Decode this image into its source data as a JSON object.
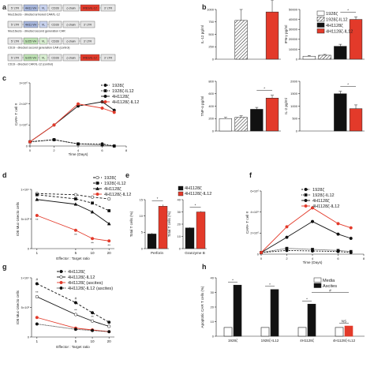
{
  "panel_letters": [
    "a",
    "b",
    "c",
    "d",
    "e",
    "f",
    "g",
    "h"
  ],
  "constructs": [
    {
      "label": "Muc16ecto - directed armored CAR/IL-12",
      "segments": [
        {
          "text": "5' LTR",
          "color": "#e6e6e6"
        },
        {
          "text": "4H11 VH",
          "color": "#a9b8de"
        },
        {
          "text": "VL",
          "color": "#c9d3ef"
        },
        {
          "text": "CD28",
          "color": "#e6e6e6"
        },
        {
          "text": "ζ-chain",
          "color": "#e6e6e6"
        },
        {
          "text": "IRES/IL-12",
          "color": "#e33a2a"
        },
        {
          "text": "3' LTR",
          "color": "#e6e6e6"
        }
      ]
    },
    {
      "label": "Muc16ecto - directed second generation CAR",
      "segments": [
        {
          "text": "5' LTR",
          "color": "#e6e6e6"
        },
        {
          "text": "4H11 VH",
          "color": "#a9b8de"
        },
        {
          "text": "VL",
          "color": "#c9d3ef"
        },
        {
          "text": "CD28",
          "color": "#e6e6e6"
        },
        {
          "text": "ζ-chain",
          "color": "#e6e6e6"
        },
        {
          "text": "3' LTR",
          "color": "#e6e6e6"
        }
      ]
    },
    {
      "label": "CD19 - directed second generation CAR (control)",
      "segments": [
        {
          "text": "5' LTR",
          "color": "#e6e6e6"
        },
        {
          "text": "SJ25 VH",
          "color": "#bfe3b5"
        },
        {
          "text": "VL",
          "color": "#d9efd2"
        },
        {
          "text": "CD28",
          "color": "#e6e6e6"
        },
        {
          "text": "ζ-chain",
          "color": "#e6e6e6"
        },
        {
          "text": "3' LTR",
          "color": "#e6e6e6"
        }
      ]
    },
    {
      "label": "CD19 - directed CAR/IL-12 (control)",
      "segments": [
        {
          "text": "5' LTR",
          "color": "#e6e6e6"
        },
        {
          "text": "SJ25 VH",
          "color": "#bfe3b5"
        },
        {
          "text": "VL",
          "color": "#d9efd2"
        },
        {
          "text": "CD28",
          "color": "#e6e6e6"
        },
        {
          "text": "ζ-chain",
          "color": "#e6e6e6"
        },
        {
          "text": "IRES/IL-12",
          "color": "#e33a2a"
        },
        {
          "text": "3' LTR",
          "color": "#e6e6e6"
        }
      ]
    }
  ],
  "chart_data": [
    {
      "panel": "b1",
      "type": "bar",
      "ylabel": "IL-12 pg/ml",
      "categories": [
        "1928ζ",
        "1928ζ-IL12",
        "4H1128ζ",
        "4H1128ζ-IL12"
      ],
      "values": [
        0,
        780,
        0,
        950
      ],
      "errors": [
        0,
        220,
        0,
        240
      ],
      "ylim": [
        0,
        1000
      ],
      "yticks": [
        "0",
        "250",
        "500",
        "750",
        "1000"
      ]
    },
    {
      "panel": "b2",
      "type": "bar",
      "ylabel": "IFN-γ pg/ml",
      "categories": [
        "1928ζ",
        "1928ζ-IL12",
        "4H1128ζ",
        "4H1128ζ-IL12"
      ],
      "values": [
        3000,
        4000,
        13000,
        40000
      ],
      "errors": [
        800,
        800,
        2000,
        2500
      ],
      "ylim": [
        0,
        50000
      ],
      "yticks": [
        "0",
        "10000",
        "20000",
        "30000",
        "40000",
        "50000"
      ],
      "annotations": [
        "*"
      ],
      "legend": [
        "1928ζ",
        "1928ζ-IL12",
        "4H1128ζ",
        "4H1128ζ-IL12"
      ]
    },
    {
      "panel": "b3",
      "type": "bar",
      "ylabel": "TNF-α pg/ml",
      "categories": [
        "1928ζ",
        "1928ζ-IL12",
        "4H1128ζ",
        "4H1128ζ-IL12"
      ],
      "values": [
        200,
        220,
        350,
        530
      ],
      "errors": [
        20,
        25,
        30,
        45
      ],
      "ylim": [
        0,
        800
      ],
      "yticks": [
        "0",
        "200",
        "400",
        "600",
        "800"
      ],
      "annotations": [
        "*"
      ]
    },
    {
      "panel": "b4",
      "type": "bar",
      "ylabel": "IL-2 pg/ml",
      "categories": [
        "1928ζ",
        "1928ζ-IL12",
        "4H1128ζ",
        "4H1128ζ-IL12"
      ],
      "values": [
        0,
        0,
        1500,
        900
      ],
      "errors": [
        0,
        0,
        100,
        150
      ],
      "ylim": [
        0,
        2000
      ],
      "yticks": [
        "0",
        "500",
        "1000",
        "1500",
        "2000"
      ],
      "annotations": [
        "*"
      ]
    },
    {
      "panel": "c",
      "type": "line",
      "ylabel": "CAR+ T cell #",
      "xlabel": "Time (Days)",
      "x": [
        0,
        2,
        4,
        6,
        7
      ],
      "xticks": [
        "0",
        "2",
        "4",
        "6",
        "8"
      ],
      "ylim": [
        0,
        3000000
      ],
      "yticks": [
        "0",
        "1×10⁶",
        "2×10⁶",
        "3×10⁶"
      ],
      "series": [
        {
          "name": "1928ζ",
          "values": [
            200000,
            300000,
            100000,
            100000,
            0
          ]
        },
        {
          "name": "1928ζ-IL12",
          "values": [
            200000,
            300000,
            100000,
            50000,
            0
          ]
        },
        {
          "name": "4H1128ζ",
          "values": [
            200000,
            1000000,
            1900000,
            2100000,
            1700000
          ]
        },
        {
          "name": "4H1128ζ-IL12",
          "values": [
            200000,
            1000000,
            2000000,
            1800000,
            1600000
          ]
        }
      ]
    },
    {
      "panel": "d",
      "type": "line",
      "ylabel": "ID8 Muc-16ecto cells",
      "xlabel": "Effector : Target ratio",
      "x": [
        1,
        5,
        10,
        20
      ],
      "xticks": [
        "1",
        "5",
        "10",
        "20"
      ],
      "ylim": [
        0,
        10000
      ],
      "yticks": [
        "0",
        "5×10³",
        "1×10⁴"
      ],
      "series": [
        {
          "name": "1928ζ",
          "values": [
            9300,
            9100,
            8700,
            8400
          ]
        },
        {
          "name": "1928ζ-IL12",
          "values": [
            9100,
            8400,
            7700,
            6400
          ]
        },
        {
          "name": "4H1128ζ",
          "values": [
            8300,
            7500,
            6200,
            4200
          ]
        },
        {
          "name": "4H1128ζ-IL12",
          "values": [
            5600,
            3100,
            1700,
            1300
          ]
        }
      ],
      "annotations": [
        "**",
        "**",
        "**",
        "**"
      ]
    },
    {
      "panel": "e1",
      "type": "bar",
      "ylabel": "Total T cells (%)",
      "categories": [
        "Perforin",
        "Perforin"
      ],
      "values": [
        4.5,
        13.0
      ],
      "errors": [
        0.3,
        0.5
      ],
      "ylim": [
        0,
        15
      ],
      "yticks": [
        "0",
        "5",
        "10",
        "15"
      ],
      "annotations": [
        "*"
      ]
    },
    {
      "panel": "e2",
      "type": "bar",
      "ylabel": "Total T cells (%)",
      "categories": [
        "Granzyme B",
        "Granzyme B"
      ],
      "values": [
        17.0,
        30.0
      ],
      "errors": [
        0.5,
        0.6
      ],
      "ylim": [
        0,
        40
      ],
      "yticks": [
        "0",
        "10",
        "20",
        "30",
        "40"
      ],
      "annotations": [
        "*"
      ],
      "legend": [
        "4H1128ζ",
        "4H1128ζ-IL12"
      ]
    },
    {
      "panel": "f",
      "type": "line",
      "ylabel": "CAR+ T cell #",
      "xlabel": "Time (Days)",
      "x": [
        0,
        2,
        4,
        6,
        7
      ],
      "xticks": [
        "0",
        "2",
        "4",
        "6",
        "8"
      ],
      "ylim": [
        0,
        6000000
      ],
      "yticks": [
        "0",
        "2×10⁶",
        "4×10⁶",
        "6×10⁶"
      ],
      "series": [
        {
          "name": "1928ζ",
          "values": [
            150000,
            350000,
            300000,
            250000,
            150000
          ]
        },
        {
          "name": "1928ζ-IL12",
          "values": [
            150000,
            550000,
            450000,
            350000,
            250000
          ]
        },
        {
          "name": "4H1128ζ",
          "values": [
            150000,
            1600000,
            3100000,
            1900000,
            1500000
          ]
        },
        {
          "name": "4H1128ζ-IL12",
          "values": [
            150000,
            2600000,
            4400000,
            2900000,
            2500000
          ]
        }
      ]
    },
    {
      "panel": "g",
      "type": "line",
      "ylabel": "ID8 Muc-16ecto cells",
      "xlabel": "Effector : Target ratio",
      "x": [
        1,
        5,
        10,
        20
      ],
      "xticks": [
        "1",
        "5",
        "10",
        "20"
      ],
      "ylim": [
        0,
        10000
      ],
      "yticks": [
        "0",
        "5×10³",
        "1×10⁴"
      ],
      "series": [
        {
          "name": "4H1128ζ",
          "values": [
            9000,
            5800,
            4100,
            2500
          ]
        },
        {
          "name": "4H1128ζ-IL12",
          "values": [
            6800,
            3800,
            2700,
            1800
          ]
        },
        {
          "name": "4H1128ζ (ascites)",
          "values": [
            3300,
            1500,
            1200,
            900
          ]
        },
        {
          "name": "4H1128ζ-IL12 (ascites)",
          "values": [
            2200,
            1300,
            1100,
            900
          ]
        }
      ],
      "annotations": [
        "#",
        "#",
        "**",
        "**",
        "**",
        "**"
      ]
    },
    {
      "panel": "h",
      "type": "bar",
      "ylabel": "Apoptotic CAR T cells (%)",
      "categories": [
        "1928ζ",
        "1928ζ-IL12",
        "4H1128ζ",
        "4H1128ζ-IL12"
      ],
      "series": [
        {
          "name": "Media",
          "values": [
            6,
            6,
            6,
            6
          ]
        },
        {
          "name": "Ascites",
          "values": [
            35,
            32,
            22,
            7
          ]
        }
      ],
      "ylim": [
        0,
        40
      ],
      "yticks": [
        "0",
        "10",
        "20",
        "30",
        "40"
      ],
      "annotations": [
        "*",
        "*",
        "*",
        "#",
        "NS"
      ]
    }
  ]
}
